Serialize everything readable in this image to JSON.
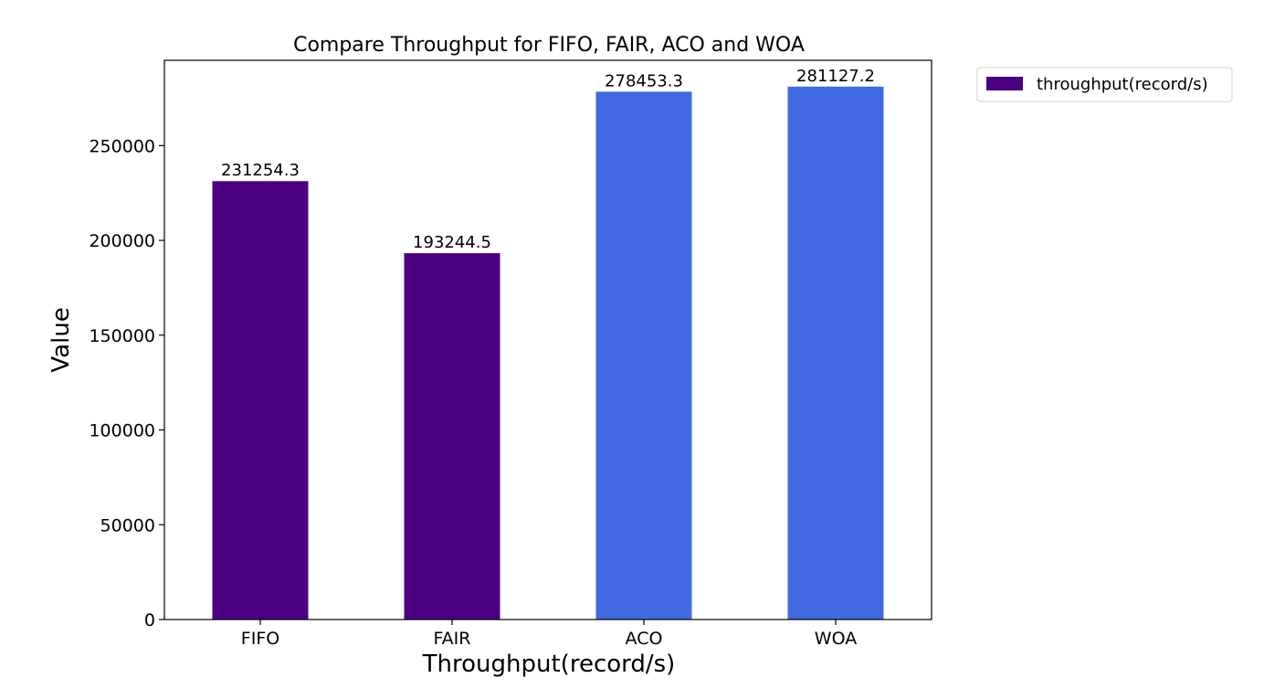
{
  "colors": {
    "purple": "#4b0082",
    "blue": "#4169e1"
  },
  "chart_data": {
    "type": "bar",
    "title": "Compare Throughput for FIFO, FAIR, ACO and WOA",
    "xlabel": "Throughput(record/s)",
    "ylabel": "Value",
    "categories": [
      "FIFO",
      "FAIR",
      "ACO",
      "WOA"
    ],
    "values": [
      231254.3,
      193244.5,
      278453.3,
      281127.2
    ],
    "value_labels": [
      "231254.3",
      "193244.5",
      "278453.3",
      "281127.2"
    ],
    "bar_colors": [
      "#4b0082",
      "#4b0082",
      "#4169e1",
      "#4169e1"
    ],
    "ylim": [
      0,
      295000
    ],
    "yticks": [
      0,
      50000,
      100000,
      150000,
      200000,
      250000
    ],
    "ytick_labels": [
      "0",
      "50000",
      "100000",
      "150000",
      "200000",
      "250000"
    ],
    "grid": false,
    "legend": {
      "placement": "outside-top-right",
      "entries": [
        {
          "label": "throughput(record/s)",
          "color": "#4b0082"
        }
      ]
    }
  }
}
